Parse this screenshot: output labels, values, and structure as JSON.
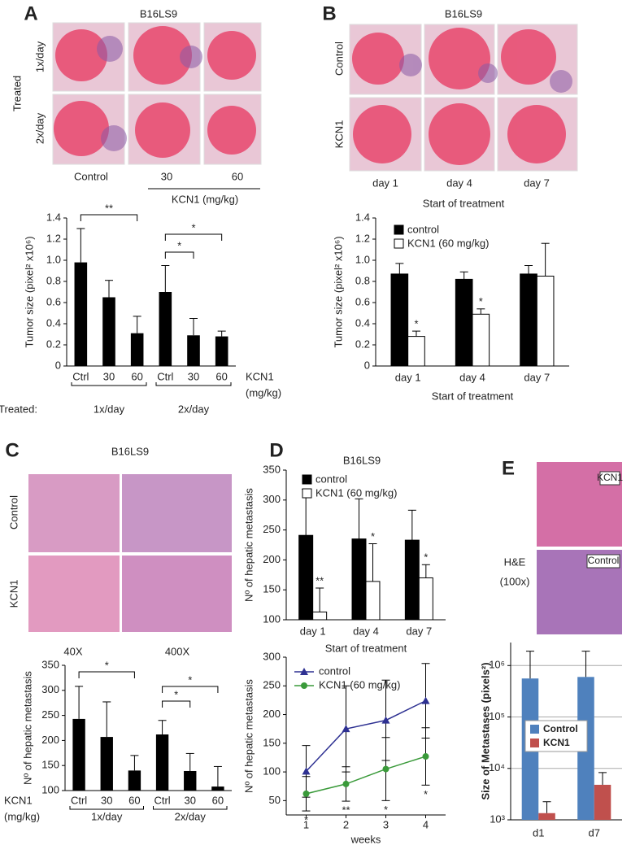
{
  "figure": {
    "A": {
      "letter": "A",
      "title": "B16LS9",
      "side": "Treated",
      "rows": [
        "1x/day",
        "2x/day"
      ],
      "cols": [
        "Control",
        "30",
        "60"
      ],
      "col_group": "KCN1 (mg/kg)"
    },
    "B": {
      "letter": "B",
      "title": "B16LS9",
      "rows": [
        "Control",
        "KCN1"
      ],
      "cols": [
        "day 1",
        "day 4",
        "day 7"
      ],
      "caption": "Start of treatment"
    },
    "C": {
      "letter": "C",
      "title": "B16LS9",
      "rows": [
        "Control",
        "KCN1"
      ],
      "cols": [
        "40X",
        "400X"
      ]
    },
    "D": {
      "letter": "D",
      "title": "B16LS9"
    },
    "E": {
      "letter": "E",
      "label": [
        "H&E",
        "(100x)"
      ],
      "tags": [
        "KCN1",
        "Control"
      ]
    }
  },
  "chart_data": [
    {
      "type": "bar",
      "ylabel": "Tumor size (pixel² x10⁶)",
      "categories": [
        "Ctrl",
        "30",
        "60",
        "Ctrl",
        "30",
        "60"
      ],
      "values": [
        0.98,
        0.65,
        0.31,
        0.7,
        0.29,
        0.28
      ],
      "errors": [
        0.32,
        0.16,
        0.16,
        0.25,
        0.16,
        0.05
      ],
      "color": "#000000",
      "ylim": [
        0,
        1.4
      ],
      "yticks": [
        0,
        0.2,
        0.4,
        0.6,
        0.8,
        {
          "value": 1,
          "label": "1.0"
        },
        1.2,
        1.4
      ],
      "groups": [
        "1x/day",
        "2x/day"
      ],
      "group_prefix": "Treated:",
      "x_side_label": [
        "KCN1",
        "(mg/kg)"
      ],
      "significance": [
        "**",
        "*",
        "*"
      ]
    },
    {
      "type": "bar",
      "ylabel": "Tumor size (pixel² x10⁶)",
      "xlabel": "Start of treatment",
      "categories": [
        "day 1",
        "day 4",
        "day 7"
      ],
      "series": [
        {
          "name": "control",
          "color": "#000000",
          "values": [
            0.87,
            0.82,
            0.87
          ],
          "errors": [
            0.1,
            0.07,
            0.08
          ]
        },
        {
          "name": "KCN1 (60 mg/kg)",
          "color": "#ffffff",
          "values": [
            0.28,
            0.49,
            0.85
          ],
          "errors": [
            0.05,
            0.05,
            0.31
          ],
          "annotations": [
            "*",
            "*",
            null
          ]
        }
      ],
      "ylim": [
        0,
        1.4
      ],
      "yticks": [
        0,
        0.2,
        0.4,
        0.6,
        0.8,
        {
          "value": 1,
          "label": "1.0"
        },
        1.2,
        1.4
      ]
    },
    {
      "type": "bar",
      "ylabel": "Nº of hepatic metastasis",
      "categories": [
        "Ctrl",
        "30",
        "60",
        "Ctrl",
        "30",
        "60"
      ],
      "values": [
        243,
        207,
        140,
        212,
        139,
        108
      ],
      "errors": [
        65,
        70,
        30,
        28,
        35,
        40
      ],
      "color": "#000000",
      "ylim": [
        100,
        350
      ],
      "yticks": [
        100,
        150,
        200,
        250,
        300,
        350
      ],
      "groups": [
        "1x/day",
        "2x/day"
      ],
      "x_side_label": [
        "KCN1",
        "(mg/kg)"
      ],
      "significance": [
        "*",
        "*",
        "*"
      ]
    },
    {
      "type": "bar",
      "ylabel": "Nº of hepatic metastasis",
      "xlabel": "Start of treatment",
      "categories": [
        "day 1",
        "day 4",
        "day 7"
      ],
      "series": [
        {
          "name": "control",
          "color": "#000000",
          "values": [
            241,
            235,
            233
          ],
          "errors": [
            77,
            67,
            50
          ]
        },
        {
          "name": "KCN1 (60 mg/kg)",
          "color": "#ffffff",
          "values": [
            113,
            164,
            170
          ],
          "errors": [
            40,
            63,
            22
          ],
          "annotations": [
            "**",
            "*",
            "*"
          ]
        }
      ],
      "ylim": [
        100,
        350
      ],
      "yticks": [
        100,
        150,
        200,
        250,
        300,
        350
      ]
    },
    {
      "type": "line",
      "ylabel": "Nº of hepatic metastasis",
      "xlabel": "weeks",
      "x": [
        1,
        2,
        3,
        4
      ],
      "xlim": [
        0.5,
        4.5
      ],
      "xticks": [
        1,
        2,
        3,
        4
      ],
      "series": [
        {
          "name": "control",
          "color": "#2e3192",
          "marker": "triangle",
          "values": [
            101,
            175,
            190,
            224
          ],
          "errors": [
            45,
            75,
            70,
            65
          ]
        },
        {
          "name": "KCN1 (60 mg/kg)",
          "color": "#3a9a3a",
          "marker": "circle",
          "values": [
            62,
            79,
            105,
            127
          ],
          "errors": [
            30,
            30,
            55,
            50
          ],
          "annotations": [
            "*",
            "**",
            "*",
            "*"
          ]
        }
      ],
      "ylim": [
        25,
        300
      ],
      "yticks": [
        50,
        100,
        150,
        200,
        250,
        300
      ]
    },
    {
      "type": "bar",
      "log_scale": true,
      "grid": true,
      "ylabel": "Size of Metastases (pixels²)",
      "categories": [
        "d1",
        "d7"
      ],
      "series": [
        {
          "name": "Control",
          "color": "#4f81bd",
          "values": [
            560000,
            600000
          ],
          "errors": [
            1340000,
            1300000
          ]
        },
        {
          "name": "KCN1",
          "color": "#c0504d",
          "values": [
            1350,
            4800
          ],
          "errors": [
            900,
            3500
          ]
        }
      ],
      "ylim": [
        1000,
        2800000
      ],
      "yticks": [
        {
          "value": 1000,
          "label": "10³"
        },
        {
          "value": 10000,
          "label": "10⁴"
        },
        {
          "value": 100000,
          "label": "10⁵"
        },
        {
          "value": 1000000,
          "label": "10⁶"
        }
      ]
    }
  ]
}
